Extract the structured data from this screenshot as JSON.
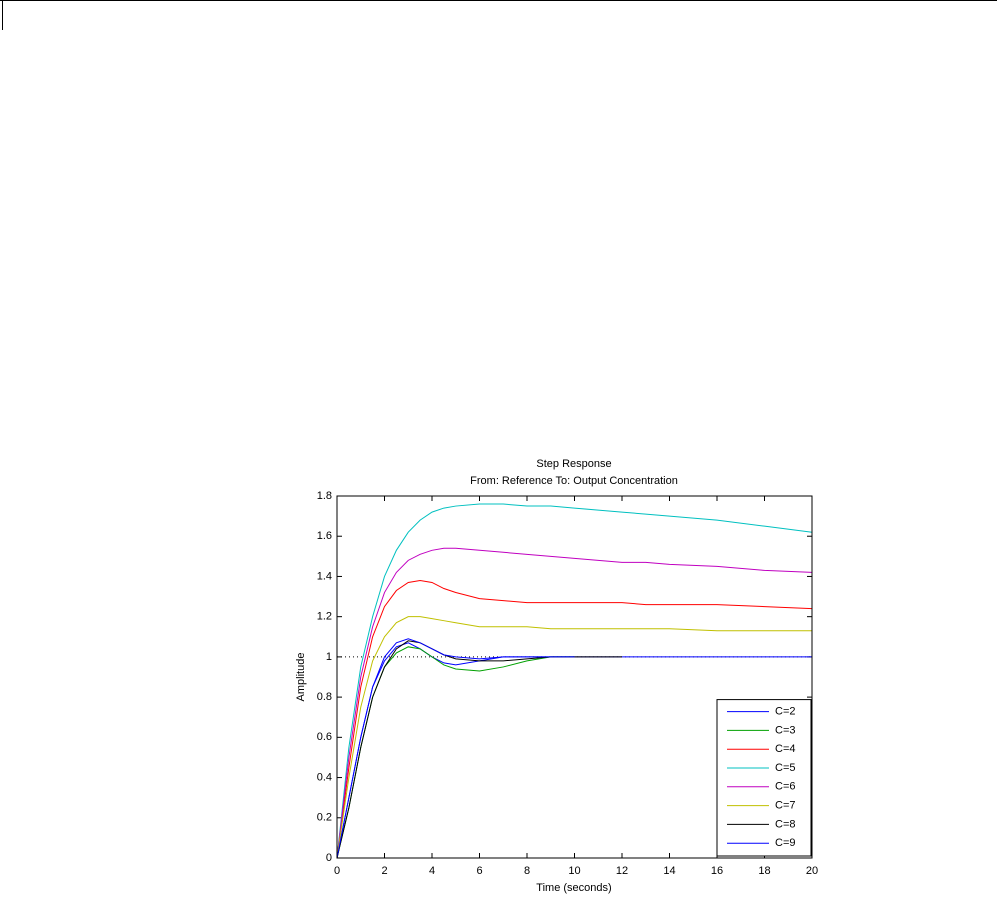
{
  "chart_data": {
    "type": "line",
    "title": "Step Response",
    "subtitle": "From: Reference  To: Output Concentration",
    "x_label": "Time (seconds)",
    "y_label": "Amplitude",
    "x": [
      0,
      0.5,
      1,
      1.5,
      2,
      2.5,
      3,
      3.5,
      4,
      4.5,
      5,
      6,
      7,
      8,
      9,
      10,
      11,
      12,
      13,
      14,
      16,
      18,
      20
    ],
    "series": [
      {
        "name": "C=2",
        "color": "#0000ff",
        "values": [
          0,
          0.3,
          0.6,
          0.85,
          0.98,
          1.05,
          1.07,
          1.04,
          1.0,
          0.97,
          0.96,
          0.98,
          1.0,
          1.0,
          1.0,
          1.0,
          1.0,
          1.0,
          1.0,
          1.0,
          1.0,
          1.0,
          1.0
        ]
      },
      {
        "name": "C=3",
        "color": "#00a000",
        "values": [
          0,
          0.25,
          0.55,
          0.8,
          0.95,
          1.02,
          1.05,
          1.04,
          1.0,
          0.96,
          0.94,
          0.93,
          0.95,
          0.98,
          1.0,
          1.0,
          null,
          null,
          null,
          null,
          null,
          null,
          null
        ]
      },
      {
        "name": "C=4",
        "color": "#ff0000",
        "values": [
          0,
          0.45,
          0.85,
          1.1,
          1.25,
          1.33,
          1.37,
          1.38,
          1.37,
          1.34,
          1.32,
          1.29,
          1.28,
          1.27,
          1.27,
          1.27,
          1.27,
          1.27,
          1.26,
          1.26,
          1.26,
          1.25,
          1.24
        ]
      },
      {
        "name": "C=5",
        "color": "#00c0c0",
        "values": [
          0,
          0.55,
          0.95,
          1.2,
          1.4,
          1.53,
          1.62,
          1.68,
          1.72,
          1.74,
          1.75,
          1.76,
          1.76,
          1.75,
          1.75,
          1.74,
          1.73,
          1.72,
          1.71,
          1.7,
          1.68,
          1.65,
          1.62
        ]
      },
      {
        "name": "C=6",
        "color": "#c000c0",
        "values": [
          0,
          0.5,
          0.9,
          1.15,
          1.32,
          1.42,
          1.48,
          1.51,
          1.53,
          1.54,
          1.54,
          1.53,
          1.52,
          1.51,
          1.5,
          1.49,
          1.48,
          1.47,
          1.47,
          1.46,
          1.45,
          1.43,
          1.42
        ]
      },
      {
        "name": "C=7",
        "color": "#c0c000",
        "values": [
          0,
          0.4,
          0.75,
          0.98,
          1.1,
          1.17,
          1.2,
          1.2,
          1.19,
          1.18,
          1.17,
          1.15,
          1.15,
          1.15,
          1.14,
          1.14,
          1.14,
          1.14,
          1.14,
          1.14,
          1.13,
          1.13,
          1.13
        ]
      },
      {
        "name": "C=8",
        "color": "#000000",
        "values": [
          0,
          0.25,
          0.55,
          0.8,
          0.95,
          1.04,
          1.08,
          1.07,
          1.04,
          1.01,
          0.99,
          0.98,
          0.98,
          0.99,
          1.0,
          1.0,
          1.0,
          1.0,
          null,
          null,
          null,
          null,
          null
        ]
      },
      {
        "name": "C=9",
        "color": "#0000ff",
        "values": [
          0,
          0.3,
          0.6,
          0.85,
          1.0,
          1.07,
          1.09,
          1.07,
          1.04,
          1.01,
          1.0,
          0.99,
          1.0,
          1.0,
          1.0,
          1.0,
          null,
          null,
          null,
          null,
          null,
          null,
          null
        ]
      }
    ],
    "reference_line": 1,
    "xlim": [
      0,
      20
    ],
    "xticks": [
      0,
      2,
      4,
      6,
      8,
      10,
      12,
      14,
      16,
      18,
      20
    ],
    "ylim": [
      0,
      1.8
    ],
    "yticks": [
      0,
      0.2,
      0.4,
      0.6,
      0.8,
      1,
      1.2,
      1.4,
      1.6,
      1.8
    ],
    "legend": "lower right",
    "grid": false
  }
}
